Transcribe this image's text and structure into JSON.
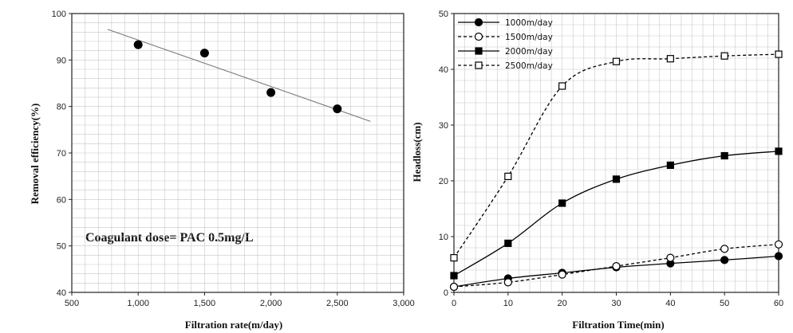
{
  "chart_data": [
    {
      "type": "scatter",
      "title": "",
      "xlabel": "Filtration rate(m/day)",
      "ylabel": "Removal efficiency(%)",
      "xlim": [
        500,
        3000
      ],
      "ylim": [
        40,
        100
      ],
      "xticks": [
        500,
        1000,
        1500,
        2000,
        2500,
        3000
      ],
      "xtick_labels": [
        "500",
        "1,000",
        "1,500",
        "2,000",
        "2,500",
        "3,000"
      ],
      "yticks": [
        40,
        50,
        60,
        70,
        80,
        90,
        100
      ],
      "ytick_labels": [
        "40",
        "50",
        "60",
        "70",
        "80",
        "90",
        "100"
      ],
      "grid": true,
      "points": [
        {
          "x": 1000,
          "y": 93.3
        },
        {
          "x": 1500,
          "y": 91.5
        },
        {
          "x": 2000,
          "y": 83.0
        },
        {
          "x": 2500,
          "y": 79.5
        }
      ],
      "trendline": {
        "x": [
          770,
          2750
        ],
        "y": [
          96.6,
          76.8
        ]
      },
      "annotation": "Coagulant dose= PAC 0.5mg/L"
    },
    {
      "type": "line",
      "title": "",
      "xlabel": "Filtration Time(min)",
      "ylabel": "Headloss(cm)",
      "xlim": [
        0,
        60
      ],
      "ylim": [
        0,
        50
      ],
      "xticks": [
        0,
        10,
        20,
        30,
        40,
        50,
        60
      ],
      "xtick_labels": [
        "0",
        "10",
        "20",
        "30",
        "40",
        "50",
        "60"
      ],
      "yticks": [
        0,
        10,
        20,
        30,
        40,
        50
      ],
      "ytick_labels": [
        "0",
        "10",
        "20",
        "30",
        "40",
        "50"
      ],
      "grid": true,
      "legend_position": "top-left",
      "x": [
        0,
        10,
        20,
        30,
        40,
        50,
        60
      ],
      "series": [
        {
          "name": "1000m/day",
          "values": [
            1.0,
            2.5,
            3.5,
            4.5,
            5.2,
            5.8,
            6.5
          ],
          "marker": "circle-filled",
          "dash": false
        },
        {
          "name": "1500m/day",
          "values": [
            1.0,
            1.8,
            3.2,
            4.7,
            6.2,
            7.8,
            8.6
          ],
          "marker": "circle-open",
          "dash": true
        },
        {
          "name": "2000m/day",
          "values": [
            3.0,
            8.8,
            16.0,
            20.3,
            22.8,
            24.5,
            25.3
          ],
          "marker": "square-filled",
          "dash": false
        },
        {
          "name": "2500m/day",
          "values": [
            6.2,
            20.8,
            37.0,
            41.4,
            41.9,
            42.4,
            42.7
          ],
          "marker": "square-open",
          "dash": true
        }
      ]
    }
  ]
}
